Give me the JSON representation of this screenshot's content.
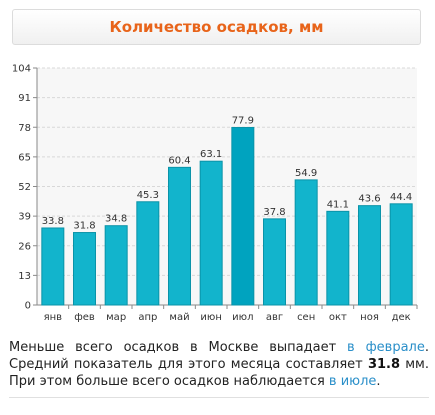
{
  "header": {
    "title": "Количество осадков, мм"
  },
  "chart_data": {
    "type": "bar",
    "title": "Количество осадков, мм",
    "xlabel": "",
    "ylabel": "",
    "categories": [
      "янв",
      "фев",
      "мар",
      "апр",
      "май",
      "июн",
      "июл",
      "авг",
      "сен",
      "окт",
      "ноя",
      "дек"
    ],
    "values": [
      33.8,
      31.8,
      34.8,
      45.3,
      60.4,
      63.1,
      77.9,
      37.8,
      54.9,
      41.1,
      43.6,
      44.4
    ],
    "max_index": 6,
    "ylim": [
      0,
      104
    ],
    "yticks": [
      0,
      13,
      26,
      39,
      52,
      65,
      78,
      91,
      104
    ],
    "grid": true,
    "legend": "none",
    "colors": {
      "bar": "#12b4cc",
      "bar_edge": "#0a93a8",
      "bar_max": "#00a3bf",
      "grid": "#d8d8d8",
      "axis": "#8a8a8a",
      "text": "#333333",
      "plot_bg": "#f7f7f7"
    }
  },
  "summary": {
    "t1": "Меньше всего осадков в Москве выпадает ",
    "min_month": "в феврале",
    "t2": ". Средний показатель для этого месяца составляет ",
    "min_value": "31.8",
    "t3": " мм. При этом больше всего осадков наблюдается ",
    "max_month": "в июле",
    "t4": "."
  }
}
